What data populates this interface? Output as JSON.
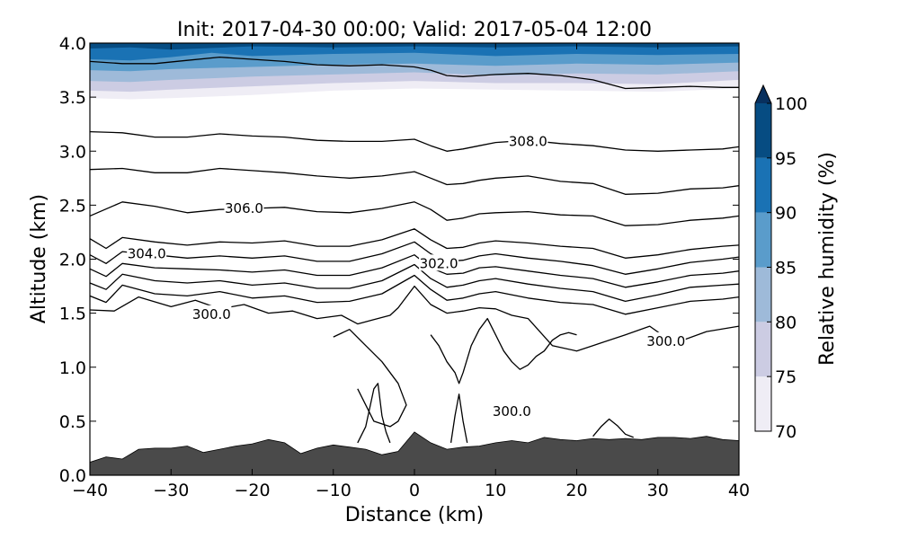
{
  "chart_data": {
    "type": "cross-section",
    "title": "Init: 2017-04-30 00:00; Valid: 2017-05-04 12:00",
    "xlabel": "Distance (km)",
    "ylabel": "Altitude (km)",
    "xlim": [
      -40,
      40
    ],
    "ylim": [
      0,
      4
    ],
    "xticks": [
      -40,
      -30,
      -20,
      -10,
      0,
      10,
      20,
      30,
      40
    ],
    "xtick_labels": [
      "−40",
      "−30",
      "−20",
      "−10",
      "0",
      "10",
      "20",
      "30",
      "40"
    ],
    "yticks": [
      0,
      0.5,
      1,
      1.5,
      2,
      2.5,
      3,
      3.5,
      4
    ],
    "ytick_labels": [
      "0.0",
      "0.5",
      "1.0",
      "1.5",
      "2.0",
      "2.5",
      "3.0",
      "3.5",
      "4.0"
    ],
    "colorbar": {
      "label": "Relative humidity (%)",
      "levels": [
        70,
        75,
        80,
        85,
        90,
        95,
        100
      ],
      "tick_labels": [
        "70",
        "75",
        "80",
        "85",
        "90",
        "95",
        "100"
      ],
      "colors": [
        "#efedf5",
        "#cccce3",
        "#9ebad9",
        "#5a9ccb",
        "#1a72b4",
        "#064c82"
      ],
      "extend": "max"
    },
    "terrain": {
      "color": "#4a4a4a",
      "x": [
        -40,
        -38,
        -36,
        -34,
        -32,
        -30,
        -28,
        -26,
        -24,
        -22,
        -20,
        -18,
        -16,
        -14,
        -12,
        -10,
        -8,
        -6,
        -4,
        -2,
        0,
        2,
        4,
        6,
        8,
        10,
        12,
        14,
        16,
        18,
        20,
        22,
        24,
        26,
        28,
        30,
        32,
        34,
        36,
        38,
        40
      ],
      "y": [
        0.12,
        0.17,
        0.15,
        0.24,
        0.25,
        0.25,
        0.27,
        0.21,
        0.24,
        0.27,
        0.29,
        0.33,
        0.3,
        0.2,
        0.25,
        0.28,
        0.26,
        0.24,
        0.19,
        0.22,
        0.4,
        0.3,
        0.24,
        0.26,
        0.27,
        0.3,
        0.32,
        0.3,
        0.35,
        0.33,
        0.32,
        0.34,
        0.33,
        0.34,
        0.33,
        0.35,
        0.35,
        0.34,
        0.36,
        0.33,
        0.32
      ]
    },
    "humidity_layers": [
      {
        "level": 70,
        "x": [
          -40,
          -35,
          -30,
          -20,
          -10,
          0,
          10,
          20,
          30,
          40
        ],
        "y": [
          3.49,
          3.48,
          3.49,
          3.52,
          3.56,
          3.58,
          3.57,
          3.56,
          3.55,
          3.58
        ]
      },
      {
        "level": 75,
        "x": [
          -40,
          -35,
          -30,
          -20,
          -10,
          0,
          10,
          20,
          30,
          40
        ],
        "y": [
          3.56,
          3.55,
          3.57,
          3.6,
          3.63,
          3.65,
          3.63,
          3.63,
          3.62,
          3.66
        ]
      },
      {
        "level": 80,
        "x": [
          -40,
          -35,
          -30,
          -20,
          -10,
          0,
          10,
          20,
          30,
          40
        ],
        "y": [
          3.65,
          3.64,
          3.66,
          3.69,
          3.71,
          3.73,
          3.7,
          3.72,
          3.71,
          3.74
        ]
      },
      {
        "level": 85,
        "x": [
          -40,
          -35,
          -30,
          -20,
          -10,
          0,
          10,
          20,
          30,
          40
        ],
        "y": [
          3.75,
          3.74,
          3.76,
          3.78,
          3.8,
          3.81,
          3.79,
          3.81,
          3.8,
          3.82
        ]
      },
      {
        "level": 90,
        "x": [
          -40,
          -35,
          -30,
          -25,
          -20,
          -10,
          0,
          10,
          20,
          30,
          40
        ],
        "y": [
          3.85,
          3.84,
          3.87,
          3.91,
          3.88,
          3.9,
          3.91,
          3.88,
          3.9,
          3.89,
          3.9
        ]
      },
      {
        "level": 95,
        "x": [
          -40,
          -35,
          -30,
          -20,
          -10,
          0,
          10,
          20,
          30,
          40
        ],
        "y": [
          3.95,
          3.96,
          3.94,
          3.97,
          3.96,
          3.97,
          3.96,
          3.97,
          3.96,
          3.97
        ]
      }
    ],
    "contours": [
      {
        "x": [
          -40,
          -36,
          -32,
          -28,
          -24,
          -20,
          -16,
          -12,
          -8,
          -4,
          0,
          2,
          4,
          6,
          8,
          10,
          14,
          18,
          22,
          26,
          30,
          34,
          38,
          40
        ],
        "y": [
          3.83,
          3.81,
          3.81,
          3.84,
          3.87,
          3.85,
          3.83,
          3.8,
          3.79,
          3.8,
          3.78,
          3.75,
          3.7,
          3.69,
          3.7,
          3.71,
          3.72,
          3.7,
          3.66,
          3.58,
          3.59,
          3.6,
          3.59,
          3.59
        ]
      },
      {
        "x": [
          -40,
          -36,
          -32,
          -28,
          -24,
          -20,
          -16,
          -12,
          -8,
          -4,
          0,
          2,
          4,
          6,
          8,
          10,
          14,
          18,
          22,
          26,
          30,
          34,
          38,
          40
        ],
        "y": [
          3.18,
          3.17,
          3.13,
          3.13,
          3.16,
          3.14,
          3.13,
          3.1,
          3.09,
          3.09,
          3.11,
          3.05,
          3.0,
          3.02,
          3.05,
          3.08,
          3.1,
          3.07,
          3.05,
          3.01,
          3.0,
          3.01,
          3.02,
          3.04
        ]
      },
      {
        "x": [
          -40,
          -36,
          -32,
          -28,
          -24,
          -20,
          -16,
          -12,
          -8,
          -4,
          0,
          2,
          4,
          6,
          8,
          10,
          14,
          18,
          22,
          26,
          30,
          34,
          38,
          40
        ],
        "y": [
          2.83,
          2.84,
          2.8,
          2.8,
          2.84,
          2.82,
          2.8,
          2.77,
          2.75,
          2.77,
          2.81,
          2.75,
          2.69,
          2.7,
          2.73,
          2.75,
          2.77,
          2.72,
          2.7,
          2.6,
          2.61,
          2.65,
          2.66,
          2.68
        ]
      },
      {
        "x": [
          -40,
          -36,
          -32,
          -28,
          -24,
          -20,
          -16,
          -12,
          -8,
          -4,
          0,
          2,
          4,
          6,
          8,
          10,
          14,
          18,
          22,
          26,
          30,
          34,
          38,
          40
        ],
        "y": [
          2.4,
          2.53,
          2.49,
          2.43,
          2.46,
          2.47,
          2.48,
          2.44,
          2.43,
          2.47,
          2.53,
          2.46,
          2.36,
          2.38,
          2.42,
          2.43,
          2.44,
          2.41,
          2.4,
          2.31,
          2.32,
          2.36,
          2.38,
          2.4
        ]
      },
      {
        "x": [
          -40,
          -38,
          -36,
          -32,
          -28,
          -24,
          -20,
          -16,
          -12,
          -8,
          -4,
          0,
          2,
          4,
          6,
          8,
          10,
          14,
          18,
          22,
          26,
          30,
          34,
          38,
          40
        ],
        "y": [
          2.19,
          2.1,
          2.2,
          2.16,
          2.13,
          2.16,
          2.15,
          2.17,
          2.12,
          2.12,
          2.18,
          2.28,
          2.18,
          2.1,
          2.11,
          2.15,
          2.17,
          2.15,
          2.12,
          2.1,
          2.01,
          2.04,
          2.09,
          2.12,
          2.13
        ]
      },
      {
        "x": [
          -40,
          -38,
          -36,
          -32,
          -28,
          -24,
          -20,
          -16,
          -12,
          -8,
          -4,
          0,
          2,
          4,
          6,
          8,
          10,
          14,
          18,
          22,
          26,
          30,
          34,
          38,
          40
        ],
        "y": [
          2.04,
          1.96,
          2.07,
          2.04,
          2.01,
          2.03,
          2.01,
          2.03,
          1.98,
          1.98,
          2.05,
          2.16,
          2.05,
          1.98,
          1.99,
          2.03,
          2.05,
          2.01,
          1.98,
          1.94,
          1.86,
          1.91,
          1.97,
          2.0,
          2.02
        ]
      },
      {
        "x": [
          -40,
          -38,
          -36,
          -32,
          -28,
          -24,
          -20,
          -16,
          -12,
          -8,
          -4,
          0,
          2,
          4,
          6,
          8,
          10,
          14,
          18,
          22,
          26,
          30,
          34,
          38,
          40
        ],
        "y": [
          1.91,
          1.84,
          1.96,
          1.92,
          1.91,
          1.9,
          1.88,
          1.9,
          1.85,
          1.85,
          1.92,
          2.04,
          1.92,
          1.86,
          1.87,
          1.92,
          1.93,
          1.89,
          1.85,
          1.82,
          1.74,
          1.79,
          1.85,
          1.87,
          1.89
        ]
      },
      {
        "x": [
          -40,
          -38,
          -36,
          -32,
          -28,
          -24,
          -20,
          -16,
          -12,
          -8,
          -4,
          0,
          2,
          4,
          6,
          8,
          10,
          14,
          18,
          22,
          26,
          30,
          34,
          38,
          40
        ],
        "y": [
          1.78,
          1.72,
          1.86,
          1.8,
          1.78,
          1.8,
          1.76,
          1.78,
          1.73,
          1.73,
          1.8,
          1.95,
          1.82,
          1.74,
          1.76,
          1.8,
          1.82,
          1.77,
          1.73,
          1.7,
          1.61,
          1.67,
          1.74,
          1.76,
          1.77
        ]
      },
      {
        "x": [
          -40,
          -38,
          -36,
          -32,
          -28,
          -24,
          -20,
          -16,
          -12,
          -8,
          -4,
          0,
          2,
          4,
          6,
          8,
          10,
          14,
          18,
          22,
          26,
          30,
          34,
          38,
          40
        ],
        "y": [
          1.66,
          1.6,
          1.76,
          1.68,
          1.66,
          1.7,
          1.64,
          1.66,
          1.6,
          1.61,
          1.68,
          1.85,
          1.72,
          1.62,
          1.64,
          1.68,
          1.7,
          1.64,
          1.6,
          1.58,
          1.49,
          1.55,
          1.61,
          1.63,
          1.65
        ]
      },
      {
        "x": [
          -40,
          -37,
          -34,
          -30,
          -27,
          -24,
          -21,
          -18,
          -15,
          -12,
          -9,
          -7,
          -5,
          -3,
          -2,
          0,
          2,
          4,
          6,
          8,
          10,
          12,
          14,
          17,
          20,
          22,
          26,
          29,
          32,
          36,
          40
        ],
        "y": [
          1.53,
          1.52,
          1.65,
          1.56,
          1.62,
          1.54,
          1.58,
          1.5,
          1.52,
          1.45,
          1.48,
          1.4,
          1.44,
          1.48,
          1.55,
          1.75,
          1.58,
          1.5,
          1.52,
          1.55,
          1.54,
          1.48,
          1.45,
          1.2,
          1.15,
          1.2,
          1.3,
          1.38,
          1.22,
          1.33,
          1.38
        ]
      },
      {
        "x": [
          -10,
          -8,
          -6,
          -4,
          -2,
          -1,
          -2,
          -3,
          -5,
          -7
        ],
        "y": [
          1.28,
          1.35,
          1.2,
          1.05,
          0.85,
          0.65,
          0.5,
          0.45,
          0.5,
          0.8
        ]
      },
      {
        "x": [
          2,
          3,
          4,
          5,
          5.5,
          6,
          7,
          8,
          9,
          10,
          11,
          12,
          13,
          14,
          15,
          16,
          17,
          18,
          19,
          20
        ],
        "y": [
          1.3,
          1.2,
          1.05,
          0.95,
          0.85,
          0.95,
          1.2,
          1.35,
          1.45,
          1.3,
          1.15,
          1.05,
          0.98,
          1.02,
          1.1,
          1.15,
          1.25,
          1.3,
          1.32,
          1.3
        ]
      },
      {
        "x": [
          -7,
          -6,
          -5,
          -4.5,
          -4,
          -3.5,
          -3
        ],
        "y": [
          0.3,
          0.45,
          0.8,
          0.85,
          0.55,
          0.4,
          0.3
        ]
      },
      {
        "x": [
          4.5,
          5,
          5.5,
          6,
          6.5
        ],
        "y": [
          0.3,
          0.55,
          0.75,
          0.5,
          0.3
        ]
      },
      {
        "x": [
          22,
          23,
          24,
          25,
          26,
          27
        ],
        "y": [
          0.36,
          0.45,
          0.52,
          0.46,
          0.38,
          0.35
        ]
      }
    ],
    "contour_labels": [
      {
        "text": "308.0",
        "x": 14,
        "y": 3.09
      },
      {
        "text": "306.0",
        "x": -21,
        "y": 2.47
      },
      {
        "text": "304.0",
        "x": -33,
        "y": 2.05
      },
      {
        "text": "302.0",
        "x": 3,
        "y": 1.96
      },
      {
        "text": "300.0",
        "x": -25,
        "y": 1.49
      },
      {
        "text": "300.0",
        "x": 31,
        "y": 1.24
      },
      {
        "text": "300.0",
        "x": 12,
        "y": 0.59
      }
    ]
  }
}
